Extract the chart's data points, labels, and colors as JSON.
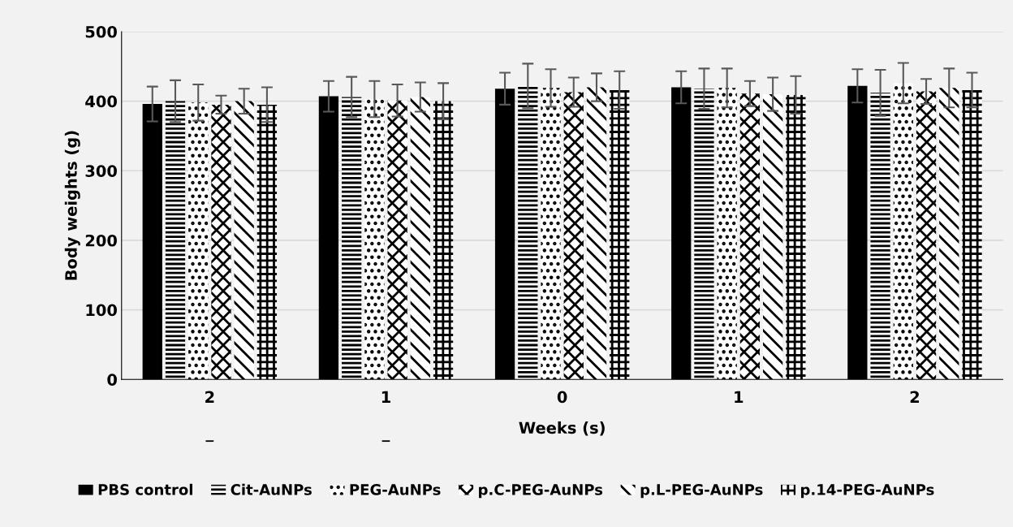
{
  "chart_data": {
    "type": "bar",
    "xlabel": "Weeks (s)",
    "ylabel": "Body weights (g)",
    "categories": [
      "2\n\n_",
      "1\n\n_",
      "0",
      "1",
      "2"
    ],
    "series": [
      {
        "name": "PBS control",
        "color": "#000000",
        "values": [
          396,
          407,
          418,
          420,
          422
        ],
        "errors": [
          25,
          22,
          23,
          23,
          24
        ]
      },
      {
        "name": "Cit-AuNPs",
        "color": "#000000",
        "values": [
          400,
          406,
          422,
          418,
          412
        ],
        "errors": [
          30,
          29,
          32,
          29,
          33
        ]
      },
      {
        "name": "PEG-AuNPs",
        "color": "#000000",
        "values": [
          398,
          403,
          419,
          419,
          426
        ],
        "errors": [
          26,
          26,
          27,
          28,
          29
        ]
      },
      {
        "name": "p.C-PEG-AuNPs",
        "color": "#000000",
        "values": [
          395,
          401,
          413,
          411,
          414
        ],
        "errors": [
          13,
          23,
          21,
          18,
          18
        ]
      },
      {
        "name": "p.L-PEG-AuNPs",
        "color": "#000000",
        "values": [
          400,
          406,
          420,
          410,
          419
        ],
        "errors": [
          18,
          21,
          20,
          24,
          28
        ]
      },
      {
        "name": "p.14-PEG-AuNPs",
        "color": "#000000",
        "values": [
          395,
          400,
          416,
          409,
          416
        ],
        "errors": [
          25,
          26,
          27,
          27,
          25
        ]
      }
    ],
    "ylim": [
      0,
      500
    ],
    "yticks": [
      0,
      100,
      200,
      300,
      400,
      500
    ],
    "grid": "y",
    "legend": "bottom"
  }
}
